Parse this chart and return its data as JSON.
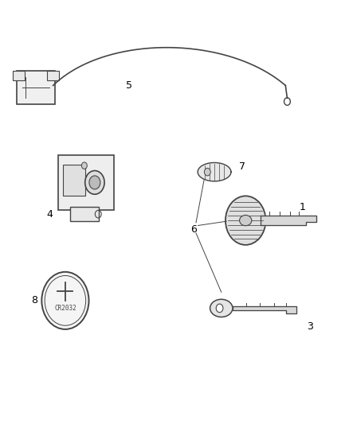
{
  "title": "",
  "background_color": "#ffffff",
  "fig_width": 4.38,
  "fig_height": 5.33,
  "dpi": 100,
  "line_color": "#333333",
  "component_color": "#444444",
  "label_color": "#000000",
  "font_size": 9
}
